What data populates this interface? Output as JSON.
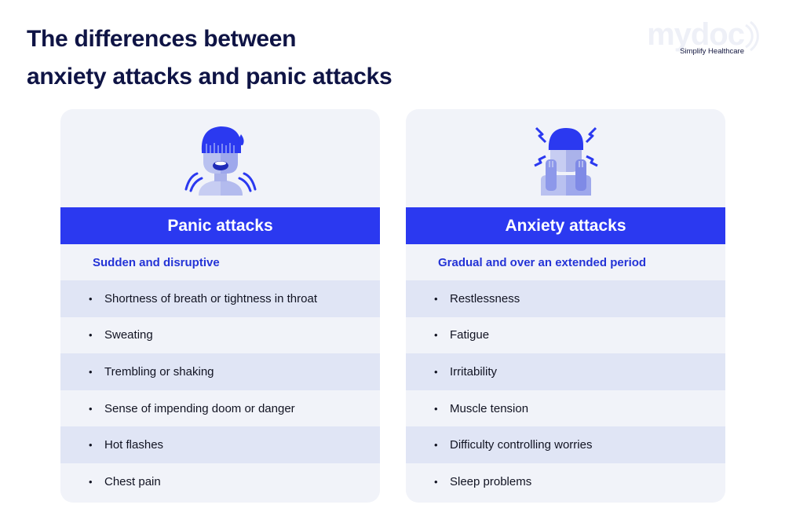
{
  "title": {
    "line1": "The differences between",
    "line2": "anxiety attacks and panic attacks"
  },
  "logo": {
    "word": "mydoc",
    "tagline": "Simplify Healthcare"
  },
  "colors": {
    "accent": "#2b39f0",
    "subtitle": "#2433d6",
    "card_bg": "#f1f3f9",
    "row_alt": "#e0e5f5",
    "title": "#0f1445"
  },
  "cards": [
    {
      "illustration": "panic-person-icon",
      "heading": "Panic attacks",
      "subtitle": "Sudden and disruptive",
      "items": [
        "Shortness of breath or tightness in throat",
        "Sweating",
        "Trembling or shaking",
        "Sense of impending doom or danger",
        "Hot flashes",
        "Chest pain"
      ]
    },
    {
      "illustration": "anxious-person-icon",
      "heading": "Anxiety attacks",
      "subtitle": "Gradual and over an extended period",
      "items": [
        "Restlessness",
        "Fatigue",
        "Irritability",
        "Muscle tension",
        "Difficulty controlling worries",
        "Sleep problems"
      ]
    }
  ]
}
